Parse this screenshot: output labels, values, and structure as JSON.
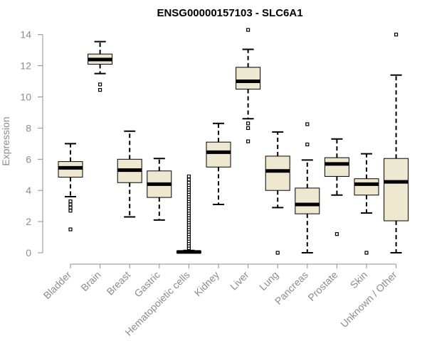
{
  "chart_data": {
    "type": "boxplot",
    "title": "ENSG00000157103 - SLC6A1",
    "xlabel": "",
    "ylabel": "Expression",
    "ylim": [
      0,
      14
    ],
    "yticks": [
      0,
      2,
      4,
      6,
      8,
      10,
      12,
      14
    ],
    "colors": {
      "box_fill": "#efe8d0",
      "box_stroke": "#000000",
      "axis": "#8c8c8c",
      "title": "#000000"
    },
    "categories": [
      "Bladder",
      "Brain",
      "Breast",
      "Gastric",
      "Hematopoietic cells",
      "Kidney",
      "Liver",
      "Lung",
      "Pancreas",
      "Prostate",
      "Skin",
      "Unknown / Other"
    ],
    "boxes": [
      {
        "name": "Bladder",
        "whisker_low": 3.6,
        "q1": 4.85,
        "median": 5.45,
        "q3": 5.85,
        "whisker_high": 7.0,
        "outliers": [
          3.3,
          3.1,
          2.9,
          2.7,
          1.5
        ]
      },
      {
        "name": "Brain",
        "whisker_low": 11.5,
        "q1": 12.1,
        "median": 12.4,
        "q3": 12.75,
        "whisker_high": 13.55,
        "outliers": [
          10.8,
          10.45
        ]
      },
      {
        "name": "Breast",
        "whisker_low": 2.3,
        "q1": 4.5,
        "median": 5.3,
        "q3": 6.0,
        "whisker_high": 7.8,
        "outliers": []
      },
      {
        "name": "Gastric",
        "whisker_low": 2.1,
        "q1": 3.55,
        "median": 4.4,
        "q3": 5.25,
        "whisker_high": 6.05,
        "outliers": []
      },
      {
        "name": "Hematopoietic cells",
        "whisker_low": 0.0,
        "q1": 0.0,
        "median": 0.05,
        "q3": 0.1,
        "whisker_high": 0.15,
        "outliers": [
          0.3,
          0.45,
          0.6,
          0.75,
          0.9,
          1.05,
          1.2,
          1.35,
          1.5,
          1.65,
          1.8,
          1.95,
          2.1,
          2.25,
          2.4,
          2.55,
          2.7,
          2.85,
          3.0,
          3.15,
          3.3,
          3.45,
          3.6,
          3.75,
          3.9,
          4.05,
          4.2,
          4.35,
          4.5,
          4.7,
          4.9
        ]
      },
      {
        "name": "Kidney",
        "whisker_low": 3.1,
        "q1": 5.5,
        "median": 6.45,
        "q3": 7.1,
        "whisker_high": 8.3,
        "outliers": []
      },
      {
        "name": "Liver",
        "whisker_low": 8.6,
        "q1": 10.5,
        "median": 11.0,
        "q3": 11.9,
        "whisker_high": 13.05,
        "outliers": [
          14.3,
          8.3,
          8.0,
          7.15
        ]
      },
      {
        "name": "Lung",
        "whisker_low": 2.9,
        "q1": 4.0,
        "median": 5.25,
        "q3": 6.2,
        "whisker_high": 7.75,
        "outliers": [
          0.0
        ]
      },
      {
        "name": "Pancreas",
        "whisker_low": 0.0,
        "q1": 2.5,
        "median": 3.1,
        "q3": 4.15,
        "whisker_high": 5.95,
        "outliers": [
          8.25,
          6.95
        ]
      },
      {
        "name": "Prostate",
        "whisker_low": 3.7,
        "q1": 4.9,
        "median": 5.7,
        "q3": 6.1,
        "whisker_high": 7.3,
        "outliers": [
          1.2
        ]
      },
      {
        "name": "Skin",
        "whisker_low": 2.55,
        "q1": 3.7,
        "median": 4.4,
        "q3": 4.75,
        "whisker_high": 6.35,
        "outliers": [
          0.0
        ]
      },
      {
        "name": "Unknown / Other",
        "whisker_low": 0.0,
        "q1": 2.05,
        "median": 4.55,
        "q3": 6.05,
        "whisker_high": 11.4,
        "outliers": [
          14.0
        ]
      }
    ]
  }
}
